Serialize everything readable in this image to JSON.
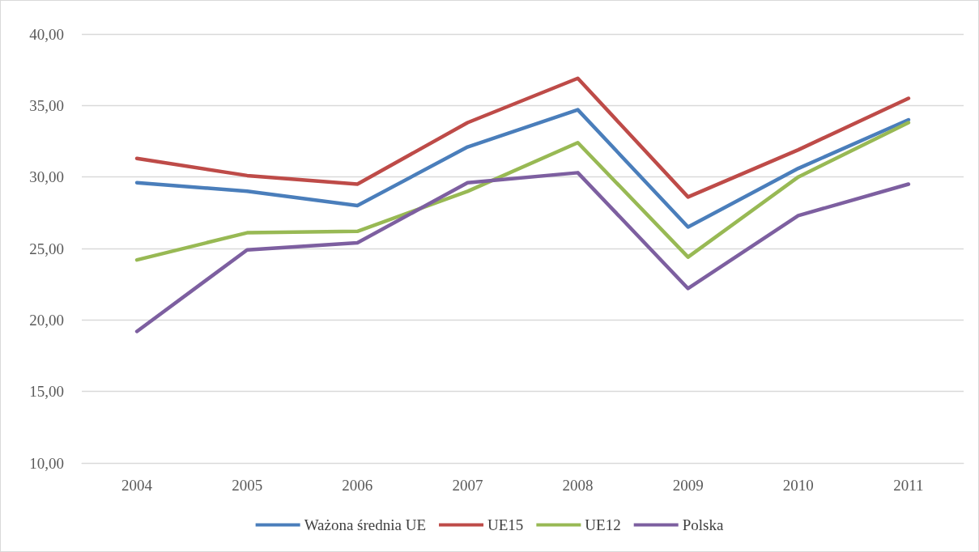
{
  "chart_data": {
    "type": "line",
    "categories": [
      "2004",
      "2005",
      "2006",
      "2007",
      "2008",
      "2009",
      "2010",
      "2011"
    ],
    "series": [
      {
        "name": "Ważona średnia UE",
        "color": "#4a7ebb",
        "values": [
          29.6,
          29.0,
          28.0,
          32.1,
          34.7,
          26.5,
          30.6,
          34.0
        ]
      },
      {
        "name": "UE15",
        "color": "#be4b48",
        "values": [
          31.3,
          30.1,
          29.5,
          33.8,
          36.9,
          28.6,
          31.9,
          35.5
        ]
      },
      {
        "name": "UE12",
        "color": "#98b954",
        "values": [
          24.2,
          26.1,
          26.2,
          29.0,
          32.4,
          24.4,
          30.0,
          33.8
        ]
      },
      {
        "name": "Polska",
        "color": "#7d5fa0",
        "values": [
          19.2,
          24.9,
          25.4,
          29.6,
          30.3,
          22.2,
          27.3,
          29.5
        ]
      }
    ],
    "ylim": [
      10,
      40
    ],
    "yticks": [
      {
        "value": 10,
        "label": "10,00"
      },
      {
        "value": 15,
        "label": "15,00"
      },
      {
        "value": 20,
        "label": "20,00"
      },
      {
        "value": 25,
        "label": "25,00"
      },
      {
        "value": 30,
        "label": "30,00"
      },
      {
        "value": 35,
        "label": "35,00"
      },
      {
        "value": 40,
        "label": "40,00"
      }
    ],
    "grid": "y",
    "legend": "bottom",
    "marker": "none",
    "line_style": "solid"
  }
}
